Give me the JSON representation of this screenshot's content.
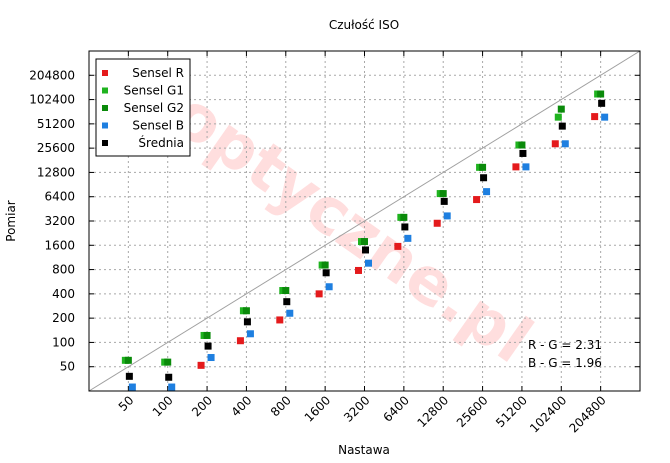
{
  "chart_data": {
    "type": "scatter",
    "title": "Czułość ISO",
    "xlabel": "Nastawa",
    "ylabel": "Pomiar",
    "x_scale": "log2",
    "y_scale": "log2",
    "xlim": [
      25,
      409600
    ],
    "ylim": [
      25,
      409600
    ],
    "x_ticks": [
      50,
      100,
      200,
      400,
      800,
      1600,
      3200,
      6400,
      12800,
      25600,
      51200,
      102400,
      204800
    ],
    "y_ticks": [
      50,
      100,
      200,
      400,
      800,
      1600,
      3200,
      6400,
      12800,
      25600,
      51200,
      102400,
      204800
    ],
    "grid": true,
    "legend_position": "top-left",
    "reference_line": "y = x",
    "series": [
      {
        "name": "Sensel R",
        "color": "#e41a1c",
        "x": [
          50,
          100,
          200,
          400,
          800,
          1600,
          3200,
          6400,
          12800,
          25600,
          51200,
          102400,
          204800
        ],
        "y": [
          null,
          null,
          52,
          105,
          190,
          400,
          780,
          1550,
          3000,
          5900,
          15000,
          29000,
          63000
        ]
      },
      {
        "name": "Sensel G1",
        "color": "#1fb31f",
        "x": [
          50,
          100,
          200,
          400,
          800,
          1600,
          3200,
          6400,
          12800,
          25600,
          51200,
          102400,
          204800
        ],
        "y": [
          60,
          57,
          122,
          247,
          440,
          910,
          1780,
          3550,
          7000,
          14800,
          28000,
          62000,
          120000
        ]
      },
      {
        "name": "Sensel G2",
        "color": "#0a8a0a",
        "x": [
          50,
          100,
          200,
          400,
          800,
          1600,
          3200,
          6400,
          12800,
          25600,
          51200,
          102400,
          204800
        ],
        "y": [
          60,
          57,
          122,
          247,
          440,
          910,
          1780,
          3550,
          7000,
          14800,
          28000,
          78000,
          120000
        ]
      },
      {
        "name": "Sensel B",
        "color": "#1e7fe0",
        "x": [
          50,
          100,
          200,
          400,
          800,
          1600,
          3200,
          6400,
          12800,
          25600,
          51200,
          102400,
          204800
        ],
        "y": [
          28,
          28,
          65,
          128,
          230,
          490,
          960,
          1950,
          3700,
          7400,
          15000,
          29000,
          62000
        ]
      },
      {
        "name": "Średnia",
        "color": "#000000",
        "x": [
          50,
          100,
          200,
          400,
          800,
          1600,
          3200,
          6400,
          12800,
          25600,
          51200,
          102400,
          204800
        ],
        "y": [
          38,
          37,
          90,
          180,
          320,
          730,
          1400,
          2700,
          5600,
          11000,
          22000,
          48000,
          92000
        ]
      }
    ],
    "annotations": [
      "R - G = 2.31",
      "B - G = 1.96"
    ],
    "watermark": "optyczne.pl"
  }
}
